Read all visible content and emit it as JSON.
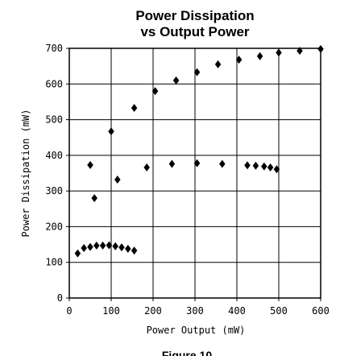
{
  "chart_data": {
    "type": "scatter",
    "title_lines": [
      "Power Dissipation",
      "vs Output Power"
    ],
    "xlabel": "Power Output (mW)",
    "ylabel": "Power Dissipation (mW)",
    "xlim": [
      0,
      600
    ],
    "ylim": [
      0,
      700
    ],
    "x_ticks": [
      "0",
      "100",
      "200",
      "300",
      "400",
      "500",
      "600"
    ],
    "y_ticks": [
      "0",
      "100",
      "200",
      "300",
      "400",
      "500",
      "600",
      "700"
    ],
    "grid": true,
    "legend": "none",
    "marker": "diamond",
    "marker_color": "#000000",
    "series": [
      {
        "points": [
          [
            20,
            125
          ],
          [
            35,
            140
          ],
          [
            50,
            143
          ],
          [
            65,
            147
          ],
          [
            80,
            147
          ],
          [
            95,
            148
          ],
          [
            110,
            145
          ],
          [
            125,
            142
          ],
          [
            140,
            138
          ],
          [
            155,
            133
          ]
        ]
      },
      {
        "points": [
          [
            50,
            373
          ],
          [
            60,
            280
          ],
          [
            115,
            332
          ],
          [
            185,
            366
          ],
          [
            245,
            376
          ],
          [
            305,
            378
          ],
          [
            365,
            376
          ],
          [
            425,
            372
          ],
          [
            445,
            371
          ],
          [
            465,
            369
          ],
          [
            480,
            366
          ],
          [
            495,
            361
          ]
        ]
      },
      {
        "points": [
          [
            100,
            467
          ],
          [
            155,
            533
          ],
          [
            205,
            580
          ],
          [
            255,
            610
          ],
          [
            305,
            633
          ],
          [
            355,
            655
          ],
          [
            405,
            668
          ],
          [
            455,
            678
          ],
          [
            500,
            688
          ],
          [
            550,
            693
          ],
          [
            600,
            698
          ]
        ]
      }
    ],
    "footer_text": "Figure 10"
  }
}
